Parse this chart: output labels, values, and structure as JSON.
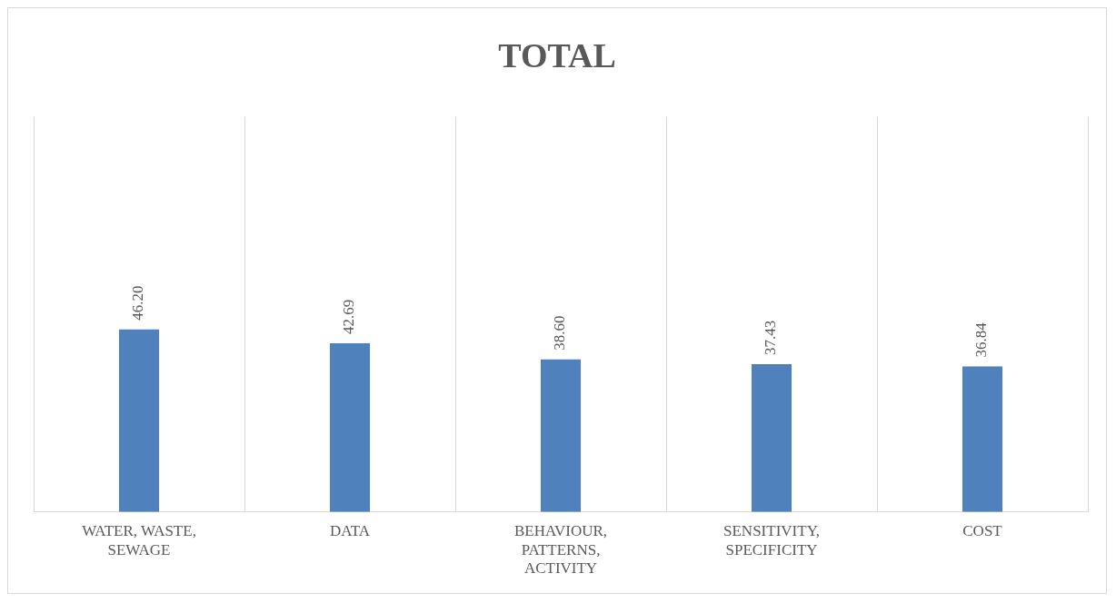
{
  "chart_data": {
    "type": "bar",
    "title": "TOTAL",
    "categories": [
      "WATER, WASTE, SEWAGE",
      "DATA",
      "BEHAVIOUR, PATTERNS, ACTIVITY",
      "SENSITIVITY, SPECIFICITY",
      "COST"
    ],
    "values": [
      46.2,
      42.69,
      38.6,
      37.43,
      36.84
    ],
    "color": "#4f81bd",
    "value_labels": [
      "46.20",
      "42.69",
      "38.60",
      "37.43",
      "36.84"
    ],
    "ylim": [
      0,
      100
    ],
    "grid": "x",
    "legend": false
  }
}
